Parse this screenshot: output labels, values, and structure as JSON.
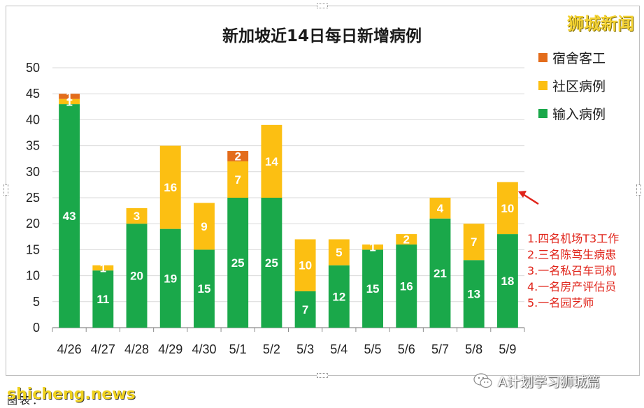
{
  "brand": "狮城新闻",
  "notes": [
    "1.四名机场T3工作",
    "2.三名陈笃生病患",
    "3.一名私召车司机",
    "4.一名房产评估员",
    "5.一名园艺师"
  ],
  "watermark": "shicheng.news",
  "caption": "图表：",
  "wechat_label": "A计划学习狮城篇",
  "chart_data": {
    "type": "bar",
    "stacked": true,
    "title": "新加坡近14日每日新增病例",
    "xlabel": "",
    "ylabel": "",
    "ylim": [
      0,
      50
    ],
    "yticks": [
      0,
      5,
      10,
      15,
      20,
      25,
      30,
      35,
      40,
      45,
      50
    ],
    "grid": true,
    "legend_position": "right",
    "categories": [
      "4/26",
      "4/27",
      "4/28",
      "4/29",
      "4/30",
      "5/1",
      "5/2",
      "5/3",
      "5/4",
      "5/5",
      "5/6",
      "5/7",
      "5/8",
      "5/9"
    ],
    "series": [
      {
        "name": "输入病例",
        "color": "#1aa84a",
        "values": [
          43,
          11,
          20,
          19,
          15,
          25,
          25,
          7,
          12,
          15,
          16,
          21,
          13,
          18
        ]
      },
      {
        "name": "社区病例",
        "color": "#fcbf12",
        "values": [
          1,
          1,
          3,
          16,
          9,
          7,
          14,
          10,
          5,
          1,
          2,
          4,
          7,
          10
        ]
      },
      {
        "name": "宿舍客工",
        "color": "#e36c1b",
        "values": [
          1,
          0,
          0,
          0,
          0,
          2,
          0,
          0,
          0,
          0,
          0,
          0,
          0,
          0
        ]
      }
    ],
    "legend_order": [
      "宿舍客工",
      "社区病例",
      "输入病例"
    ]
  }
}
